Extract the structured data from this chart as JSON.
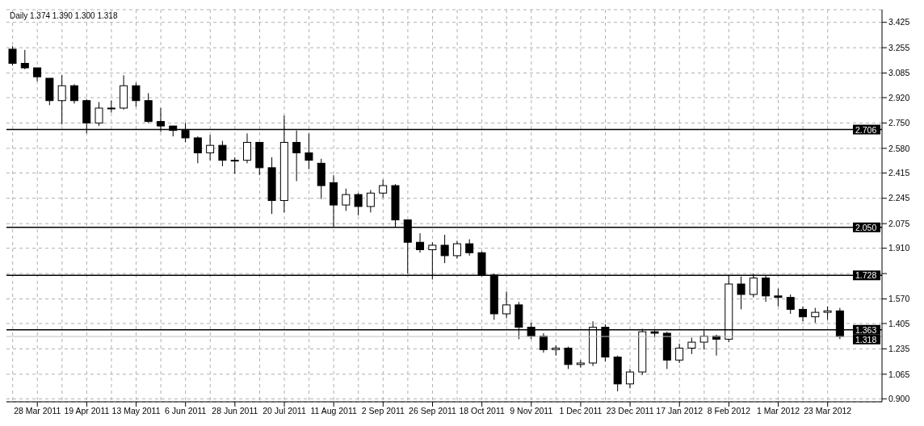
{
  "chart_data": {
    "type": "candlestick",
    "title": "Daily 1.374 1.390 1.300 1.318",
    "color": "#000000",
    "categories": [
      null,
      null,
      "28 Mar 2011",
      null,
      null,
      null,
      "19 Apr 2011",
      null,
      null,
      null,
      "13 May 2011",
      null,
      null,
      null,
      "6 Jun 2011",
      null,
      null,
      null,
      "28 Jun 2011",
      null,
      null,
      null,
      "20 Jul 2011",
      null,
      null,
      null,
      "11 Aug 2011",
      null,
      null,
      null,
      "2 Sep 2011",
      null,
      null,
      null,
      "26 Sep 2011",
      null,
      null,
      null,
      "18 Oct 2011",
      null,
      null,
      null,
      "9 Nov 2011",
      null,
      null,
      null,
      "1 Dec 2011",
      null,
      null,
      null,
      "23 Dec 2011",
      null,
      null,
      null,
      "17 Jan 2012",
      null,
      null,
      null,
      "8 Feb 2012",
      null,
      null,
      null,
      "1 Mar 2012",
      null,
      null,
      null,
      "23 Mar 2012",
      null
    ],
    "ohlc": [
      [
        3.245,
        3.265,
        3.135,
        3.15
      ],
      [
        3.15,
        3.24,
        3.11,
        3.12
      ],
      [
        3.12,
        3.12,
        3.03,
        3.06
      ],
      [
        3.05,
        3.05,
        2.87,
        2.9
      ],
      [
        2.9,
        3.07,
        2.74,
        3.0
      ],
      [
        3.0,
        3.01,
        2.88,
        2.9
      ],
      [
        2.9,
        2.91,
        2.68,
        2.75
      ],
      [
        2.75,
        2.89,
        2.73,
        2.85
      ],
      [
        2.85,
        2.9,
        2.82,
        2.85
      ],
      [
        2.85,
        3.07,
        2.84,
        3.0
      ],
      [
        3.0,
        3.02,
        2.86,
        2.9
      ],
      [
        2.9,
        2.95,
        2.75,
        2.76
      ],
      [
        2.76,
        2.85,
        2.69,
        2.73
      ],
      [
        2.73,
        2.73,
        2.66,
        2.7
      ],
      [
        2.7,
        2.75,
        2.62,
        2.65
      ],
      [
        2.65,
        2.66,
        2.48,
        2.55
      ],
      [
        2.55,
        2.67,
        2.5,
        2.6
      ],
      [
        2.6,
        2.63,
        2.46,
        2.5
      ],
      [
        2.5,
        2.52,
        2.41,
        2.5
      ],
      [
        2.5,
        2.68,
        2.48,
        2.62
      ],
      [
        2.62,
        2.62,
        2.4,
        2.45
      ],
      [
        2.45,
        2.52,
        2.14,
        2.23
      ],
      [
        2.23,
        2.8,
        2.15,
        2.62
      ],
      [
        2.62,
        2.7,
        2.36,
        2.55
      ],
      [
        2.55,
        2.68,
        2.44,
        2.5
      ],
      [
        2.48,
        2.51,
        2.24,
        2.33
      ],
      [
        2.35,
        2.4,
        2.05,
        2.2
      ],
      [
        2.2,
        2.31,
        2.16,
        2.27
      ],
      [
        2.27,
        2.28,
        2.13,
        2.19
      ],
      [
        2.19,
        2.3,
        2.15,
        2.28
      ],
      [
        2.28,
        2.37,
        2.25,
        2.33
      ],
      [
        2.33,
        2.34,
        2.05,
        2.1
      ],
      [
        2.1,
        2.1,
        1.74,
        1.95
      ],
      [
        1.95,
        2.01,
        1.88,
        1.9
      ],
      [
        1.9,
        1.95,
        1.7,
        1.93
      ],
      [
        1.93,
        2.0,
        1.81,
        1.86
      ],
      [
        1.86,
        1.96,
        1.84,
        1.94
      ],
      [
        1.94,
        1.97,
        1.86,
        1.88
      ],
      [
        1.88,
        1.89,
        1.72,
        1.73
      ],
      [
        1.73,
        1.74,
        1.43,
        1.47
      ],
      [
        1.47,
        1.62,
        1.44,
        1.53
      ],
      [
        1.53,
        1.55,
        1.3,
        1.38
      ],
      [
        1.38,
        1.41,
        1.3,
        1.32
      ],
      [
        1.32,
        1.34,
        1.21,
        1.23
      ],
      [
        1.23,
        1.26,
        1.19,
        1.24
      ],
      [
        1.24,
        1.25,
        1.1,
        1.13
      ],
      [
        1.13,
        1.16,
        1.11,
        1.14
      ],
      [
        1.14,
        1.42,
        1.12,
        1.38
      ],
      [
        1.38,
        1.4,
        1.15,
        1.18
      ],
      [
        1.18,
        1.19,
        0.95,
        1.0
      ],
      [
        1.0,
        1.1,
        0.97,
        1.08
      ],
      [
        1.08,
        1.37,
        1.06,
        1.35
      ],
      [
        1.35,
        1.36,
        1.31,
        1.34
      ],
      [
        1.34,
        1.35,
        1.1,
        1.16
      ],
      [
        1.16,
        1.27,
        1.14,
        1.24
      ],
      [
        1.24,
        1.31,
        1.2,
        1.28
      ],
      [
        1.28,
        1.36,
        1.23,
        1.32
      ],
      [
        1.32,
        1.33,
        1.19,
        1.3
      ],
      [
        1.3,
        1.73,
        1.28,
        1.67
      ],
      [
        1.67,
        1.72,
        1.5,
        1.6
      ],
      [
        1.6,
        1.74,
        1.58,
        1.71
      ],
      [
        1.71,
        1.73,
        1.55,
        1.59
      ],
      [
        1.59,
        1.64,
        1.52,
        1.58
      ],
      [
        1.58,
        1.6,
        1.47,
        1.5
      ],
      [
        1.5,
        1.52,
        1.42,
        1.45
      ],
      [
        1.45,
        1.51,
        1.41,
        1.48
      ],
      [
        1.48,
        1.52,
        1.43,
        1.49
      ],
      [
        1.49,
        1.51,
        1.3,
        1.318
      ]
    ],
    "ylim": [
      0.88,
      3.51
    ],
    "yticks": [
      {
        "value": 0.9,
        "label": "0.900"
      },
      1.065,
      1.235,
      1.405,
      {
        "value": 1.57,
        "label": "1.570"
      },
      {
        "value": 1.74,
        "label": null
      },
      {
        "value": 1.91,
        "label": "1.910"
      },
      2.075,
      2.245,
      2.415,
      {
        "value": 2.58,
        "label": "2.580"
      },
      {
        "value": 2.75,
        "label": "2.750"
      },
      {
        "value": 2.92,
        "label": "2.920"
      },
      3.085,
      3.255,
      3.425
    ],
    "ref_lines": [
      {
        "axis": "y",
        "value": 2.706,
        "label": "2.706",
        "color": "#000000"
      },
      {
        "axis": "y",
        "value": 2.05,
        "label": "2.050",
        "color": "#000000"
      },
      {
        "axis": "y",
        "value": 1.728,
        "label": "1.728",
        "color": "#000000"
      },
      {
        "axis": "y",
        "value": 1.363,
        "label": "1.363",
        "color": "#000000"
      },
      {
        "axis": "y",
        "value": 1.318,
        "label": "1.318",
        "color": "#c0c0c0"
      }
    ],
    "grid": true
  }
}
